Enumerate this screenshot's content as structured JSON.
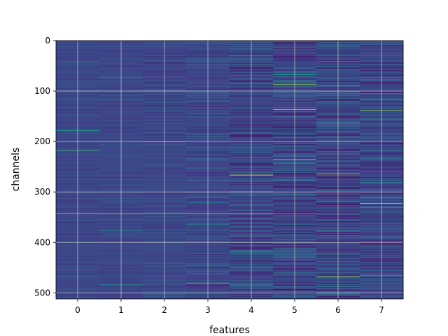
{
  "chart_data": {
    "type": "heatmap",
    "title": "",
    "xlabel": "features",
    "ylabel": "channels",
    "x_categories": [
      "0",
      "1",
      "2",
      "3",
      "4",
      "5",
      "6",
      "7"
    ],
    "y_ticks": [
      0,
      100,
      200,
      300,
      400,
      500
    ],
    "y_tick_labels": [
      "0",
      "100",
      "200",
      "300",
      "400",
      "500"
    ],
    "ylim": [
      0,
      512
    ],
    "n_channels": 512,
    "n_features": 8,
    "y_inverted": true,
    "grid": true,
    "colormap": "viridis",
    "base_color": "#3b4f8c",
    "row_seed": 1337,
    "feature_variance": [
      0.15,
      0.18,
      0.25,
      0.35,
      0.55,
      0.6,
      0.62,
      0.5
    ],
    "highlights": [
      {
        "channel": 42,
        "feature": 0,
        "value": 0.55
      },
      {
        "channel": 178,
        "feature": 0,
        "value": 0.6
      },
      {
        "channel": 218,
        "feature": 0,
        "value": 0.7
      },
      {
        "channel": 342,
        "feature": 0,
        "value": 0.9
      },
      {
        "channel": 342,
        "feature": 1,
        "value": 0.9
      },
      {
        "channel": 342,
        "feature": 2,
        "value": 0.88
      },
      {
        "channel": 342,
        "feature": 3,
        "value": 0.85
      },
      {
        "channel": 342,
        "feature": 4,
        "value": 0.85
      },
      {
        "channel": 342,
        "feature": 5,
        "value": 0.7
      },
      {
        "channel": 342,
        "feature": 6,
        "value": 0.65
      },
      {
        "channel": 266,
        "feature": 4,
        "value": 0.95
      },
      {
        "channel": 86,
        "feature": 5,
        "value": 0.85
      },
      {
        "channel": 136,
        "feature": 5,
        "value": 0.9
      },
      {
        "channel": 235,
        "feature": 5,
        "value": 0.85
      },
      {
        "channel": 264,
        "feature": 6,
        "value": 0.9
      },
      {
        "channel": 468,
        "feature": 6,
        "value": 0.85
      },
      {
        "channel": 322,
        "feature": 7,
        "value": 0.92
      },
      {
        "channel": 138,
        "feature": 7,
        "value": 0.85
      },
      {
        "channel": 480,
        "feature": 3,
        "value": 0.75
      },
      {
        "channel": 200,
        "feature": 2,
        "value": 0.6
      }
    ]
  }
}
